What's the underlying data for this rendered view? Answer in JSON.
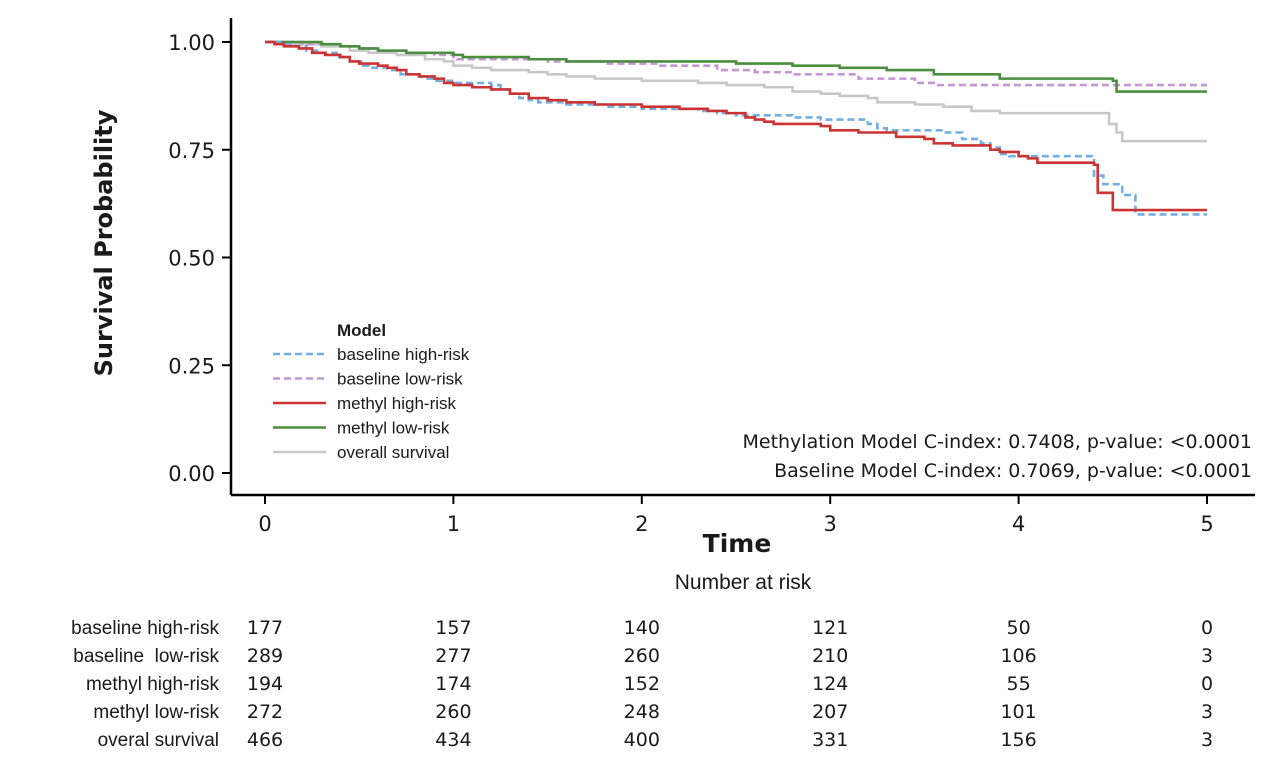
{
  "chart_data": {
    "type": "line",
    "subtype": "kaplan-meier step",
    "xlabel": "Time",
    "ylabel": "Survival Probability",
    "xlim": [
      -0.18,
      5.25
    ],
    "ylim": [
      -0.05,
      1.05
    ],
    "x_ticks": [
      "0",
      "1",
      "2",
      "3",
      "4",
      "5"
    ],
    "y_ticks": [
      "0.00",
      "0.25",
      "0.50",
      "0.75",
      "1.00"
    ],
    "legend": {
      "title": "Model",
      "position": "center-left",
      "entries": [
        "baseline high-risk",
        "baseline low-risk",
        "methyl high-risk",
        "methyl low-risk",
        "overall survival"
      ]
    },
    "annotations": [
      "Methylation Model C-index: 0.7408, p-value: <0.0001",
      "Baseline Model C-index: 0.7069, p-value: <0.0001"
    ],
    "series": [
      {
        "name": "baseline high-risk",
        "color": "#74aee0",
        "dash": "dashed",
        "points": [
          [
            0,
            1.0
          ],
          [
            0.08,
            0.995
          ],
          [
            0.15,
            0.99
          ],
          [
            0.22,
            0.98
          ],
          [
            0.3,
            0.975
          ],
          [
            0.38,
            0.965
          ],
          [
            0.45,
            0.955
          ],
          [
            0.52,
            0.945
          ],
          [
            0.55,
            0.94
          ],
          [
            0.65,
            0.935
          ],
          [
            0.72,
            0.925
          ],
          [
            0.8,
            0.92
          ],
          [
            0.85,
            0.915
          ],
          [
            0.9,
            0.91
          ],
          [
            1.0,
            0.905
          ],
          [
            1.2,
            0.9
          ],
          [
            1.25,
            0.89
          ],
          [
            1.3,
            0.88
          ],
          [
            1.35,
            0.87
          ],
          [
            1.4,
            0.865
          ],
          [
            1.45,
            0.86
          ],
          [
            1.6,
            0.855
          ],
          [
            1.8,
            0.85
          ],
          [
            2.0,
            0.845
          ],
          [
            2.3,
            0.84
          ],
          [
            2.4,
            0.835
          ],
          [
            2.5,
            0.83
          ],
          [
            2.6,
            0.83
          ],
          [
            2.8,
            0.825
          ],
          [
            2.95,
            0.82
          ],
          [
            3.2,
            0.81
          ],
          [
            3.25,
            0.8
          ],
          [
            3.3,
            0.795
          ],
          [
            3.6,
            0.79
          ],
          [
            3.7,
            0.775
          ],
          [
            3.8,
            0.765
          ],
          [
            3.85,
            0.755
          ],
          [
            3.9,
            0.74
          ],
          [
            3.95,
            0.735
          ],
          [
            4.4,
            0.69
          ],
          [
            4.45,
            0.67
          ],
          [
            4.55,
            0.645
          ],
          [
            4.62,
            0.6
          ],
          [
            5.0,
            0.6
          ]
        ]
      },
      {
        "name": "baseline low-risk",
        "color": "#c496d4",
        "dash": "dashed",
        "points": [
          [
            0,
            1.0
          ],
          [
            0.2,
            0.995
          ],
          [
            0.4,
            0.99
          ],
          [
            0.5,
            0.985
          ],
          [
            0.6,
            0.98
          ],
          [
            0.75,
            0.975
          ],
          [
            0.9,
            0.97
          ],
          [
            1.0,
            0.965
          ],
          [
            1.02,
            0.96
          ],
          [
            1.5,
            0.955
          ],
          [
            1.8,
            0.95
          ],
          [
            2.1,
            0.945
          ],
          [
            2.4,
            0.935
          ],
          [
            2.6,
            0.93
          ],
          [
            2.8,
            0.925
          ],
          [
            3.15,
            0.915
          ],
          [
            3.45,
            0.905
          ],
          [
            3.55,
            0.9
          ],
          [
            4.05,
            0.9
          ],
          [
            5.0,
            0.9
          ]
        ]
      },
      {
        "name": "methyl high-risk",
        "color": "#cc3333",
        "dash": "solid",
        "points": [
          [
            0,
            1.0
          ],
          [
            0.05,
            0.995
          ],
          [
            0.1,
            0.99
          ],
          [
            0.18,
            0.985
          ],
          [
            0.25,
            0.975
          ],
          [
            0.32,
            0.97
          ],
          [
            0.4,
            0.965
          ],
          [
            0.45,
            0.955
          ],
          [
            0.5,
            0.95
          ],
          [
            0.6,
            0.945
          ],
          [
            0.65,
            0.94
          ],
          [
            0.7,
            0.935
          ],
          [
            0.75,
            0.925
          ],
          [
            0.82,
            0.92
          ],
          [
            0.9,
            0.915
          ],
          [
            0.95,
            0.905
          ],
          [
            1.0,
            0.9
          ],
          [
            1.1,
            0.895
          ],
          [
            1.2,
            0.89
          ],
          [
            1.3,
            0.88
          ],
          [
            1.4,
            0.87
          ],
          [
            1.5,
            0.865
          ],
          [
            1.6,
            0.86
          ],
          [
            1.75,
            0.855
          ],
          [
            2.0,
            0.85
          ],
          [
            2.2,
            0.845
          ],
          [
            2.35,
            0.84
          ],
          [
            2.45,
            0.835
          ],
          [
            2.55,
            0.825
          ],
          [
            2.6,
            0.82
          ],
          [
            2.65,
            0.815
          ],
          [
            2.7,
            0.81
          ],
          [
            2.95,
            0.805
          ],
          [
            3.0,
            0.795
          ],
          [
            3.15,
            0.79
          ],
          [
            3.35,
            0.78
          ],
          [
            3.5,
            0.775
          ],
          [
            3.55,
            0.765
          ],
          [
            3.65,
            0.76
          ],
          [
            3.85,
            0.75
          ],
          [
            3.9,
            0.745
          ],
          [
            4.0,
            0.735
          ],
          [
            4.05,
            0.73
          ],
          [
            4.1,
            0.72
          ],
          [
            4.4,
            0.715
          ],
          [
            4.42,
            0.65
          ],
          [
            4.5,
            0.61
          ],
          [
            5.0,
            0.61
          ]
        ]
      },
      {
        "name": "methyl low-risk",
        "color": "#4a8f3e",
        "dash": "solid",
        "points": [
          [
            0,
            1.0
          ],
          [
            0.3,
            0.995
          ],
          [
            0.4,
            0.99
          ],
          [
            0.5,
            0.985
          ],
          [
            0.6,
            0.98
          ],
          [
            0.75,
            0.975
          ],
          [
            1.0,
            0.97
          ],
          [
            1.05,
            0.965
          ],
          [
            1.4,
            0.96
          ],
          [
            1.6,
            0.955
          ],
          [
            2.5,
            0.95
          ],
          [
            2.8,
            0.945
          ],
          [
            3.05,
            0.94
          ],
          [
            3.3,
            0.935
          ],
          [
            3.55,
            0.925
          ],
          [
            3.9,
            0.915
          ],
          [
            4.15,
            0.915
          ],
          [
            4.5,
            0.91
          ],
          [
            4.52,
            0.885
          ],
          [
            5.0,
            0.885
          ]
        ]
      },
      {
        "name": "overall survival",
        "color": "#c8c8c8",
        "dash": "solid",
        "points": [
          [
            0,
            1.0
          ],
          [
            0.15,
            0.995
          ],
          [
            0.3,
            0.99
          ],
          [
            0.45,
            0.98
          ],
          [
            0.55,
            0.975
          ],
          [
            0.7,
            0.97
          ],
          [
            0.85,
            0.96
          ],
          [
            0.95,
            0.955
          ],
          [
            1.0,
            0.945
          ],
          [
            1.1,
            0.94
          ],
          [
            1.2,
            0.935
          ],
          [
            1.4,
            0.93
          ],
          [
            1.5,
            0.925
          ],
          [
            1.6,
            0.92
          ],
          [
            1.75,
            0.915
          ],
          [
            2.0,
            0.91
          ],
          [
            2.3,
            0.905
          ],
          [
            2.45,
            0.9
          ],
          [
            2.65,
            0.895
          ],
          [
            2.8,
            0.885
          ],
          [
            2.95,
            0.88
          ],
          [
            3.05,
            0.875
          ],
          [
            3.2,
            0.87
          ],
          [
            3.25,
            0.86
          ],
          [
            3.45,
            0.855
          ],
          [
            3.6,
            0.85
          ],
          [
            3.75,
            0.84
          ],
          [
            3.9,
            0.835
          ],
          [
            4.45,
            0.835
          ],
          [
            4.48,
            0.81
          ],
          [
            4.52,
            0.79
          ],
          [
            4.55,
            0.77
          ],
          [
            5.0,
            0.77
          ]
        ]
      }
    ]
  },
  "risk_table": {
    "title": "Number at risk",
    "times": [
      0,
      1,
      2,
      3,
      4,
      5
    ],
    "rows": [
      {
        "label": "baseline high-risk",
        "values": [
          "177",
          "157",
          "140",
          "121",
          "50",
          "0"
        ]
      },
      {
        "label": "baseline  low-risk",
        "values": [
          "289",
          "277",
          "260",
          "210",
          "106",
          "3"
        ]
      },
      {
        "label": "methyl high-risk",
        "values": [
          "194",
          "174",
          "152",
          "124",
          "55",
          "0"
        ]
      },
      {
        "label": "methyl low-risk",
        "values": [
          "272",
          "260",
          "248",
          "207",
          "101",
          "3"
        ]
      },
      {
        "label": "overal survival",
        "values": [
          "466",
          "434",
          "400",
          "331",
          "156",
          "3"
        ]
      }
    ]
  }
}
